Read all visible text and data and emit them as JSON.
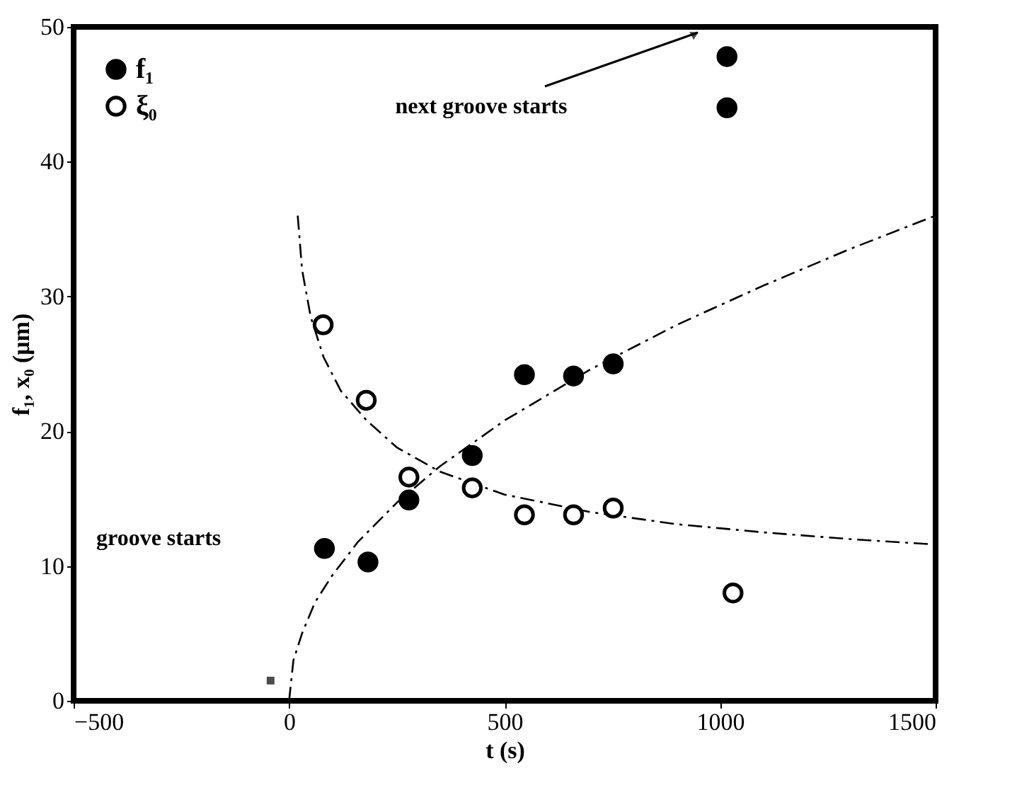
{
  "chart_data": {
    "type": "scatter",
    "xlabel": "t (s)",
    "ylabel": "f₁, x₀ (μm)",
    "xlim": [
      -500,
      1500
    ],
    "ylim": [
      0,
      50
    ],
    "xticks": [
      -500,
      0,
      500,
      1000,
      1500
    ],
    "yticks": [
      0,
      10,
      20,
      30,
      40,
      50
    ],
    "grid": false,
    "legend": "top left",
    "series": [
      {
        "name": "f₁",
        "color": "#000000",
        "marker": "circle",
        "x": [
          82,
          183,
          278,
          425,
          546,
          660,
          752,
          1016,
          1016
        ],
        "values": [
          11.3,
          10.3,
          14.9,
          18.2,
          24.2,
          24.1,
          25.0,
          47.8,
          44.0
        ]
      },
      {
        "name": "ξ₀",
        "color": "#000000",
        "marker": "circle",
        "x": [
          79,
          179,
          278,
          425,
          546,
          660,
          752,
          1030
        ],
        "values": [
          27.9,
          22.3,
          16.6,
          15.8,
          13.8,
          13.8,
          14.3,
          8.0
        ]
      },
      {
        "color": "#000000",
        "marker": "square",
        "x": [
          -43
        ],
        "values": [
          1.5
        ]
      },
      {
        "color": "#000000",
        "type": "line",
        "marker": "none",
        "line_style": "dashed",
        "x": [
          0,
          10,
          30,
          60,
          100,
          160,
          250,
          350,
          500,
          700,
          900,
          1100,
          1300,
          1500
        ],
        "values": [
          0,
          3,
          5,
          7.3,
          9.3,
          11.8,
          14.7,
          17.4,
          20.8,
          24.6,
          27.9,
          30.8,
          33.5,
          36
        ]
      },
      {
        "color": "#000000",
        "type": "line",
        "marker": "none",
        "line_style": "dashed",
        "x": [
          20,
          30,
          50,
          80,
          120,
          180,
          250,
          350,
          500,
          700,
          900,
          1100,
          1300,
          1500
        ],
        "values": [
          36,
          32,
          28.5,
          25.5,
          23,
          20.8,
          18.8,
          17,
          15.3,
          14,
          13.1,
          12.5,
          12,
          11.6
        ]
      }
    ],
    "annotations": [
      "next groove starts",
      "groove starts"
    ]
  }
}
